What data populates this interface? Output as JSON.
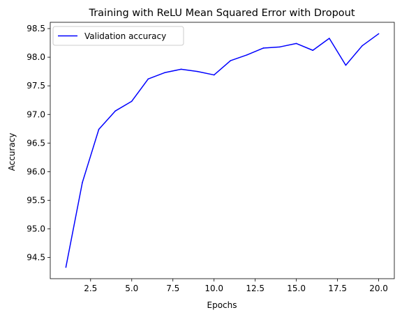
{
  "chart_data": {
    "type": "line",
    "title": "Training with ReLU Mean Squared Error with Dropout",
    "xlabel": "Epochs",
    "ylabel": "Accuracy",
    "xlim": [
      0.05,
      20.95
    ],
    "ylim": [
      94.13,
      98.61
    ],
    "xticks": [
      2.5,
      5.0,
      7.5,
      10.0,
      12.5,
      15.0,
      17.5,
      20.0
    ],
    "xtick_labels": [
      "2.5",
      "5.0",
      "7.5",
      "10.0",
      "12.5",
      "15.0",
      "17.5",
      "20.0"
    ],
    "yticks": [
      94.5,
      95.0,
      95.5,
      96.0,
      96.5,
      97.0,
      97.5,
      98.0,
      98.5
    ],
    "ytick_labels": [
      "94.5",
      "95.0",
      "95.5",
      "96.0",
      "96.5",
      "97.0",
      "97.5",
      "98.0",
      "98.5"
    ],
    "grid": false,
    "legend_position": "top-left",
    "series": [
      {
        "name": "Validation accuracy",
        "color": "#0000ff",
        "x": [
          1,
          2,
          3,
          4,
          5,
          6,
          7,
          8,
          9,
          10,
          11,
          12,
          13,
          14,
          15,
          16,
          17,
          18,
          19,
          20
        ],
        "y": [
          94.33,
          95.81,
          96.74,
          97.06,
          97.23,
          97.62,
          97.73,
          97.79,
          97.75,
          97.69,
          97.94,
          98.04,
          98.16,
          98.18,
          98.24,
          98.12,
          98.33,
          97.86,
          98.2,
          98.41
        ]
      }
    ]
  }
}
